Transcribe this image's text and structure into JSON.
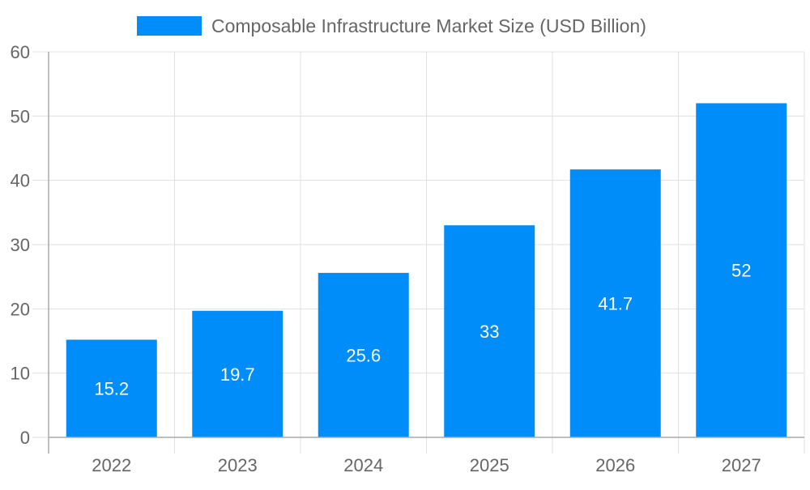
{
  "chart_data": {
    "type": "bar",
    "categories": [
      "2022",
      "2023",
      "2024",
      "2025",
      "2026",
      "2027"
    ],
    "series": [
      {
        "name": "Composable Infrastructure Market Size (USD Billion)",
        "values": [
          15.2,
          19.7,
          25.6,
          33,
          41.7,
          52
        ],
        "color": "#008cf9"
      }
    ],
    "data_labels": [
      "15.2",
      "19.7",
      "25.6",
      "33",
      "41.7",
      "52"
    ],
    "ylim": [
      0,
      60
    ],
    "yticks": [
      "0",
      "10",
      "20",
      "30",
      "40",
      "50",
      "60"
    ],
    "grid": true,
    "legend_position": "top-center",
    "xlabel": "",
    "ylabel": ""
  }
}
